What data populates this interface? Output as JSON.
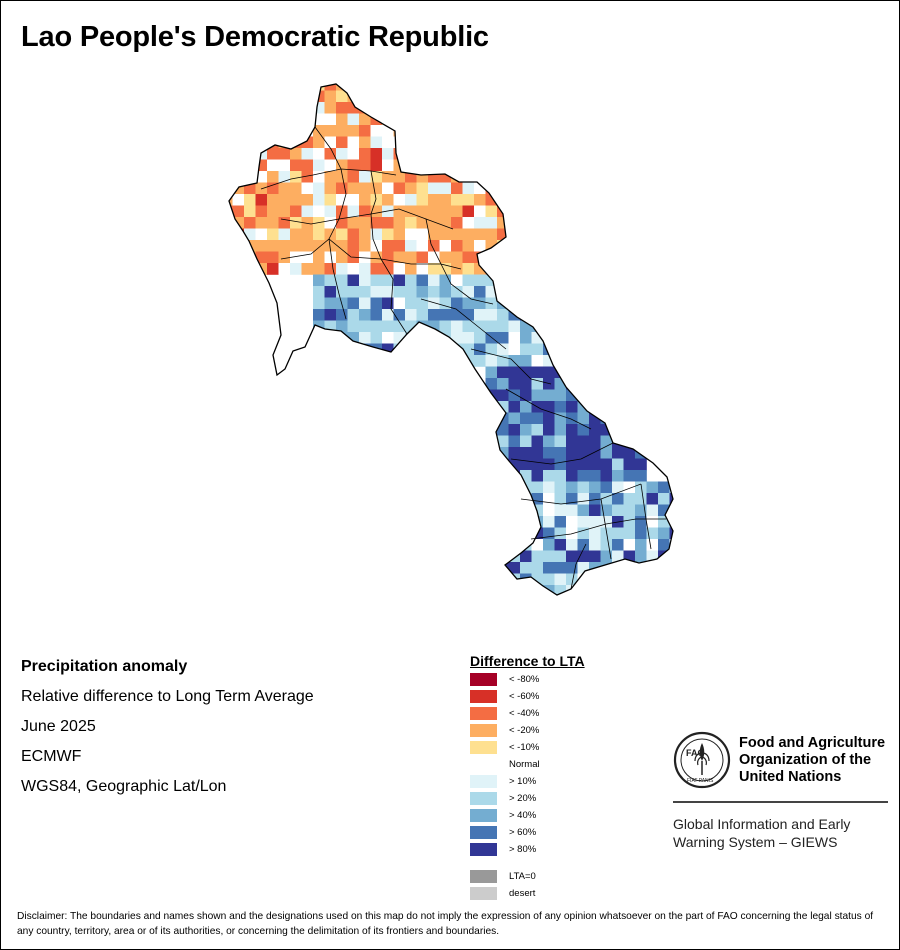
{
  "title": "Lao People's Democratic Republic",
  "info": {
    "heading": "Precipitation anomaly",
    "line1": "Relative difference to Long Term Average",
    "line2": "June 2025",
    "line3": "ECMWF",
    "line4": "WGS84, Geographic Lat/Lon"
  },
  "legend": {
    "title": "Difference to LTA",
    "items": [
      {
        "label": "< -80%",
        "color": "#a50026"
      },
      {
        "label": "< -60%",
        "color": "#d73027"
      },
      {
        "label": "< -40%",
        "color": "#f46d43"
      },
      {
        "label": "< -20%",
        "color": "#fdae61"
      },
      {
        "label": "< -10%",
        "color": "#fee090"
      },
      {
        "label": "Normal",
        "color": "#ffffff"
      },
      {
        "label": "> 10%",
        "color": "#e0f3f8"
      },
      {
        "label": "> 20%",
        "color": "#abd9e9"
      },
      {
        "label": "> 40%",
        "color": "#74add1"
      },
      {
        "label": "> 60%",
        "color": "#4575b4"
      },
      {
        "label": "> 80%",
        "color": "#313695"
      },
      {
        "label": "LTA=0",
        "color": "#999999"
      },
      {
        "label": "desert",
        "color": "#cccccc"
      }
    ]
  },
  "fao": {
    "name_line1": "Food and Agriculture",
    "name_line2": "Organization of the",
    "name_line3": "United Nations",
    "emblem_text": "FAO",
    "emblem_motto": "FIAT PANIS",
    "giews_line1": "Global Information and Early",
    "giews_line2": "Warning System – GIEWS"
  },
  "disclaimer": "Disclaimer: The boundaries and names shown and the designations used on this map do not imply the expression of any opinion whatsoever on the part of FAO concerning the legal status of any country, territory, area or of its authorities, or concerning the delimitation of its frontiers and boundaries."
}
